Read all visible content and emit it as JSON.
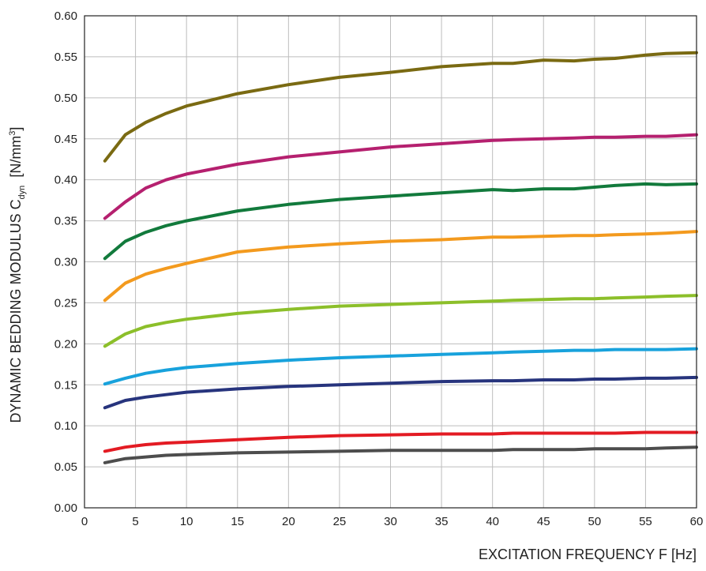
{
  "chart_data": {
    "type": "line",
    "xlabel": "EXCITATION FREQUENCY F [Hz]",
    "ylabel": {
      "prefix": "DYNAMIC BEDDING MODULUS C",
      "subscript": "dyn",
      "unit_open": "  [N/mm",
      "superscript": "3",
      "unit_close": "]"
    },
    "xlim": [
      0,
      60
    ],
    "ylim": [
      0,
      0.6
    ],
    "xticks": [
      "0",
      "5",
      "10",
      "15",
      "20",
      "25",
      "30",
      "35",
      "40",
      "45",
      "50",
      "55",
      "60"
    ],
    "yticks": [
      "0.00",
      "0.05",
      "0.10",
      "0.15",
      "0.20",
      "0.25",
      "0.30",
      "0.35",
      "0.40",
      "0.45",
      "0.50",
      "0.55",
      "0.60"
    ],
    "grid": true,
    "x": [
      2,
      4,
      6,
      8,
      10,
      15,
      20,
      25,
      30,
      35,
      40,
      42,
      45,
      48,
      50,
      52,
      55,
      57,
      60
    ],
    "series": [
      {
        "color": "#7a6a12",
        "values": [
          0.423,
          0.455,
          0.47,
          0.481,
          0.49,
          0.505,
          0.516,
          0.525,
          0.531,
          0.538,
          0.542,
          0.542,
          0.546,
          0.545,
          0.547,
          0.548,
          0.552,
          0.554,
          0.555
        ]
      },
      {
        "color": "#b5206f",
        "values": [
          0.353,
          0.373,
          0.39,
          0.4,
          0.407,
          0.419,
          0.428,
          0.434,
          0.44,
          0.444,
          0.448,
          0.449,
          0.45,
          0.451,
          0.452,
          0.452,
          0.453,
          0.453,
          0.455
        ]
      },
      {
        "color": "#127a3c",
        "values": [
          0.304,
          0.325,
          0.336,
          0.344,
          0.35,
          0.362,
          0.37,
          0.376,
          0.38,
          0.384,
          0.388,
          0.387,
          0.389,
          0.389,
          0.391,
          0.393,
          0.395,
          0.394,
          0.395
        ]
      },
      {
        "color": "#f39a1e",
        "values": [
          0.253,
          0.274,
          0.285,
          0.292,
          0.298,
          0.312,
          0.318,
          0.322,
          0.325,
          0.327,
          0.33,
          0.33,
          0.331,
          0.332,
          0.332,
          0.333,
          0.334,
          0.335,
          0.337
        ]
      },
      {
        "color": "#8cbf2a",
        "values": [
          0.197,
          0.212,
          0.221,
          0.226,
          0.23,
          0.237,
          0.242,
          0.246,
          0.248,
          0.25,
          0.252,
          0.253,
          0.254,
          0.255,
          0.255,
          0.256,
          0.257,
          0.258,
          0.259
        ]
      },
      {
        "color": "#18a2dc",
        "values": [
          0.151,
          0.158,
          0.164,
          0.168,
          0.171,
          0.176,
          0.18,
          0.183,
          0.185,
          0.187,
          0.189,
          0.19,
          0.191,
          0.192,
          0.192,
          0.193,
          0.193,
          0.193,
          0.194
        ]
      },
      {
        "color": "#27347d",
        "values": [
          0.122,
          0.131,
          0.135,
          0.138,
          0.141,
          0.145,
          0.148,
          0.15,
          0.152,
          0.154,
          0.155,
          0.155,
          0.156,
          0.156,
          0.157,
          0.157,
          0.158,
          0.158,
          0.159
        ]
      },
      {
        "color": "#e31b23",
        "values": [
          0.069,
          0.074,
          0.077,
          0.079,
          0.08,
          0.083,
          0.086,
          0.088,
          0.089,
          0.09,
          0.09,
          0.091,
          0.091,
          0.091,
          0.091,
          0.091,
          0.092,
          0.092,
          0.092
        ]
      },
      {
        "color": "#4d4d4d",
        "values": [
          0.055,
          0.06,
          0.062,
          0.064,
          0.065,
          0.067,
          0.068,
          0.069,
          0.07,
          0.07,
          0.07,
          0.071,
          0.071,
          0.071,
          0.072,
          0.072,
          0.072,
          0.073,
          0.074
        ]
      }
    ]
  }
}
